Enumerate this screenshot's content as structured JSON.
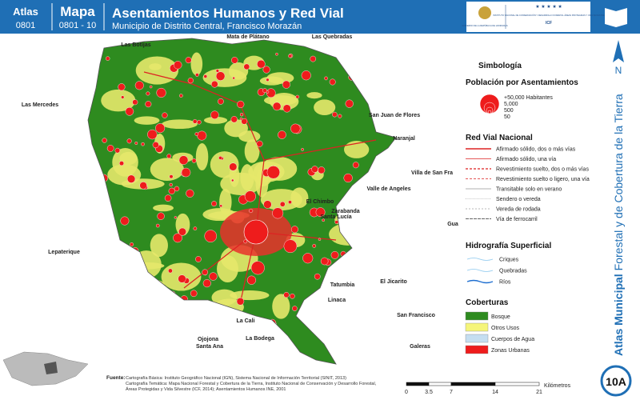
{
  "header": {
    "atlas_label": "Atlas",
    "atlas_code": "0801",
    "map_label": "Mapa",
    "map_code": "0801 - 10",
    "title": "Asentamientos Humanos y Red Vial",
    "subtitle": "Municipio de Distrito Central, Francisco Morazán",
    "logo_left": "GOBIERNO DE LA REPÚBLICA DE HONDURAS",
    "logo_right": "INSTITUTO NACIONAL DE CONSERVACIÓN Y DESARROLLO FORESTAL ÁREAS PROTEGIDAS Y VIDA SILVESTRE",
    "logo_code": "ICF"
  },
  "side": {
    "title_bold": "Atlas Municipal",
    "title_rest": "Forestal y de Cobertura de la Tierra",
    "north": "N",
    "badge": "10A"
  },
  "places": [
    "Mata de Plátano",
    "Las Quebradas",
    "Las Botijas",
    "Las Mercedes",
    "San Juan de Flores",
    "Naranjal",
    "Villa de San Fra",
    "Valle de Angeles",
    "El Chimbo",
    "Zarabanda",
    "Santa Lucía",
    "Gua",
    "Lepaterique",
    "Tatumbia",
    "El Jicarito",
    "Linaca",
    "San Francisco",
    "La Cali",
    "La Bodega",
    "Ojojona",
    "Santa Ana",
    "Galeras"
  ],
  "legend": {
    "title": "Simbología",
    "population_title": "Población por Asentamientos",
    "population_sizes": [
      "+50,000 Habitantes",
      "5,000",
      "500",
      "50"
    ],
    "roads_title": "Red Vial Nacional",
    "roads": [
      "Afirmado sólido, dos o más vías",
      "Afirmado sólido, una vía",
      "Revestimiento suelto, dos o más vías",
      "Revestimiento suelto o ligero, una vía",
      "Transitable solo en verano",
      "Sendero o vereda",
      "Vereda de rodada",
      "Vía de ferrocarril"
    ],
    "hydro_title": "Hidrografía Superficial",
    "hydro": [
      "Criques",
      "Quebradas",
      "Ríos"
    ],
    "cover_title": "Coberturas",
    "cover": [
      "Bosque",
      "Otros Usos",
      "Cuerpos de Agua",
      "Zonas Urbanas"
    ]
  },
  "footer": {
    "source_label": "Fuente:",
    "sources": [
      "Cartografía Básica: Instituto Geográfico Nacional (IGN), Sistema Nacional de Información Territorial (SINIT, 2013)",
      "Cartografía Temática: Mapa Nacional Forestal y Cobertura de la Tierra, Instituto Nacional de Conservación y Desarrollo Forestal,",
      "Áreas Protegidas y Vida Silvestre (ICF, 2014); Asentamientos Humanos INE, 2001"
    ]
  },
  "scale": {
    "ticks": [
      "0",
      "3.5",
      "7",
      "14",
      "21"
    ],
    "unit": "Kilómetros"
  }
}
